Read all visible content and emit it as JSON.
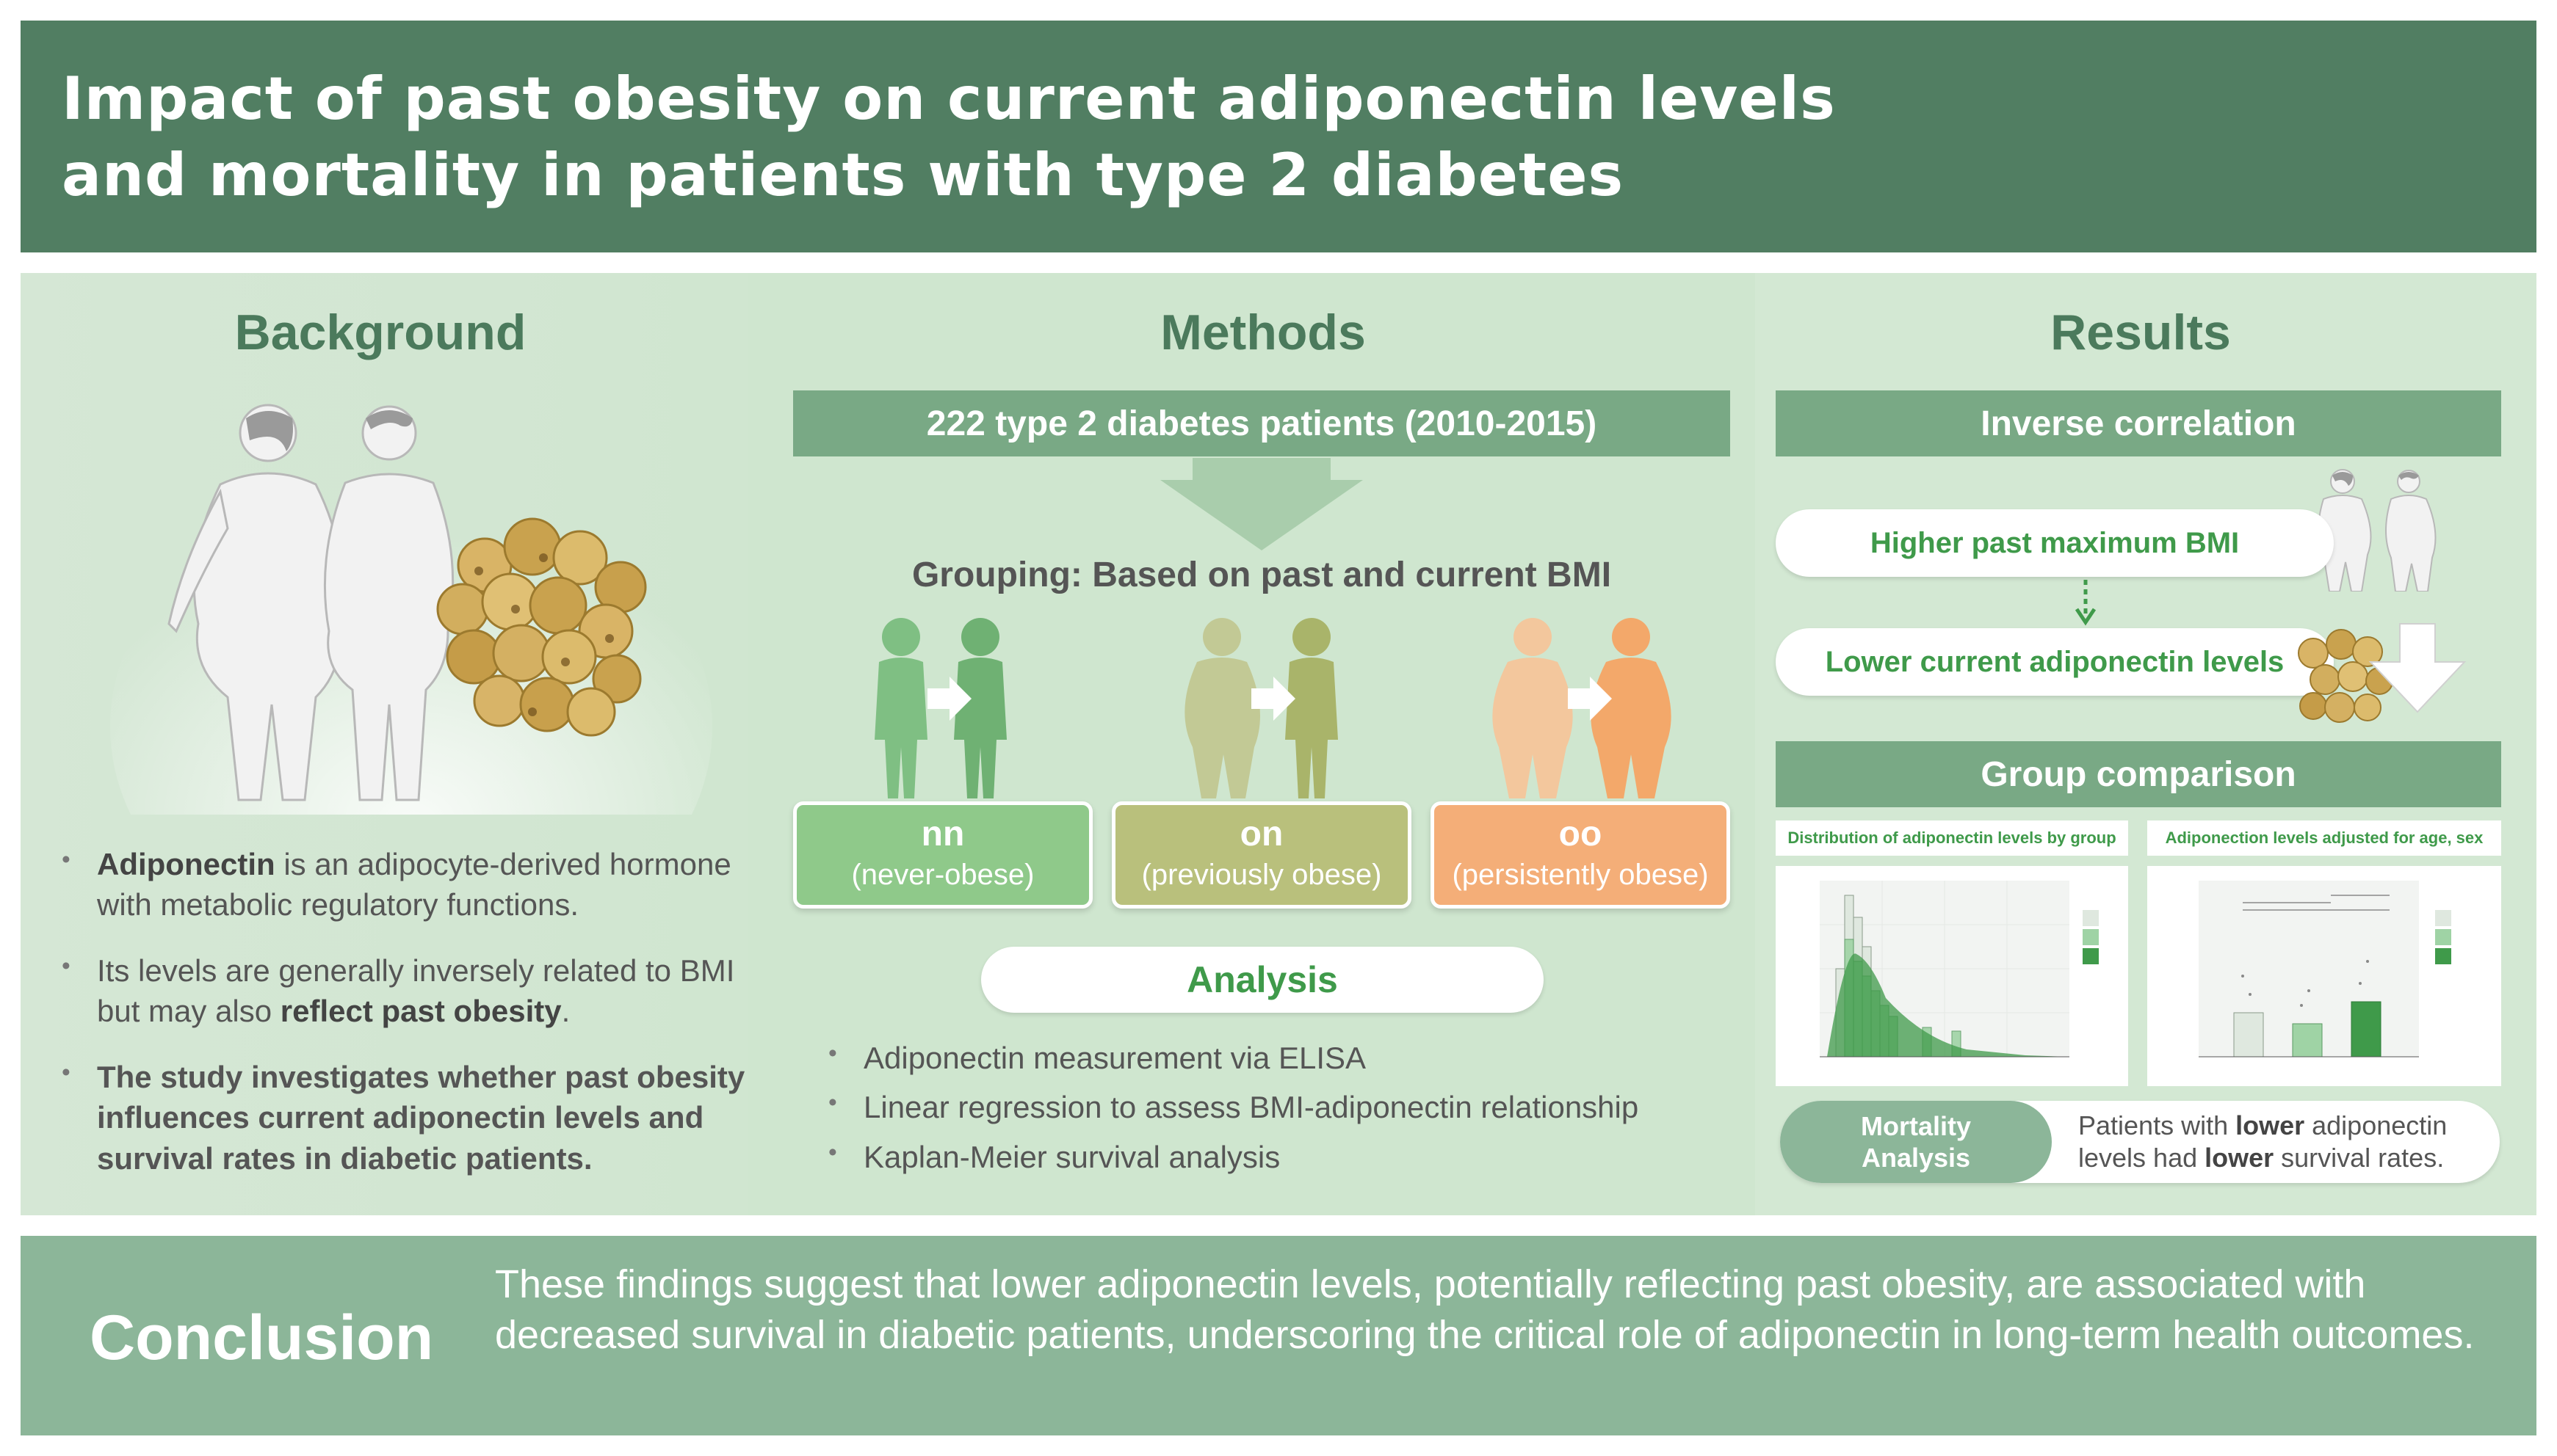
{
  "title": {
    "line1": "Impact of past obesity on current adiponectin levels",
    "line2": "and mortality in patients with type 2 diabetes"
  },
  "background": {
    "heading": "Background",
    "bullets": [
      {
        "bold": "Adiponectin",
        "rest": " is an adipocyte-derived hormone with metabolic regulatory functions."
      },
      {
        "pre": "Its levels are generally inversely related to BMI but may also ",
        "bold": "reflect past obesity",
        "post": "."
      },
      {
        "bold": "The study investigates whether past obesity influences current adiponectin levels and survival rates in diabetic patients."
      }
    ]
  },
  "methods": {
    "heading": "Methods",
    "cohort": "222 type 2 diabetes patients (2010-2015)",
    "grouping": "Grouping: Based on past and current BMI",
    "groups": [
      {
        "code": "nn",
        "desc": "(never-obese)",
        "color": "#8fc98a"
      },
      {
        "code": "on",
        "desc": "(previously obese)",
        "color": "#b9c07c"
      },
      {
        "code": "oo",
        "desc": "(persistently obese)",
        "color": "#f4ae78"
      }
    ],
    "analysis_label": "Analysis",
    "analysis_items": [
      "Adiponectin measurement via ELISA",
      "Linear regression to assess BMI-adiponectin relationship",
      "Kaplan-Meier survival analysis"
    ]
  },
  "results": {
    "heading": "Results",
    "inverse": "Inverse correlation",
    "higher_bmi": "Higher past maximum BMI",
    "lower_adipo": "Lower current adiponectin levels",
    "group_comparison": "Group comparison",
    "chart1_title": "Distribution of adiponectin levels by group",
    "chart2_title": "Adiponection levels adjusted for age, sex",
    "mortality_label_1": "Mortality",
    "mortality_label_2": "Analysis",
    "mortality_text": {
      "p1": "Patients with ",
      "b1": "lower",
      "p2": " adiponectin levels had ",
      "b2": "lower",
      "p3": " survival rates."
    }
  },
  "conclusion": {
    "label": "Conclusion",
    "text": "These findings suggest that lower adiponectin levels, potentially reflecting past obesity, are associated with decreased survival in diabetic patients, underscoring the critical role of adiponectin in long-term health outcomes."
  },
  "colors": {
    "title_bg": "#517e62",
    "accent_green": "#3f9a4a",
    "bar_green": "#79a985",
    "conclusion_bg": "#8cb699"
  }
}
